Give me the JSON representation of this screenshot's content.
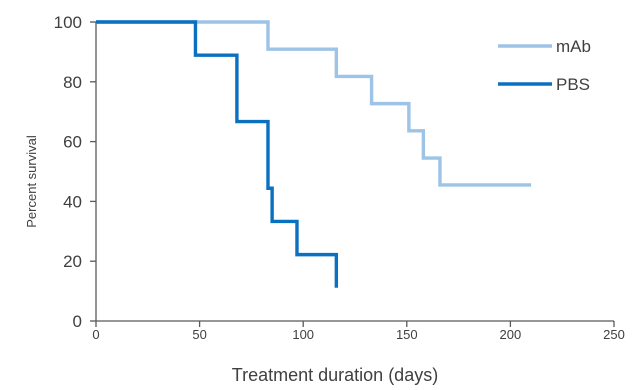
{
  "chart_data": {
    "type": "line",
    "title": "",
    "xlabel": "Treatment duration (days)",
    "ylabel": "Percent survival",
    "xlim": [
      0,
      250
    ],
    "ylim": [
      0,
      100
    ],
    "x_ticks": [
      "0",
      "50",
      "100",
      "150",
      "200",
      "250"
    ],
    "y_ticks": [
      "0",
      "20",
      "40",
      "60",
      "80",
      "100"
    ],
    "grid": false,
    "legend_position": "top-right",
    "series": [
      {
        "name": "mAb",
        "color": "#9dc3e6",
        "step": true,
        "points": [
          [
            0,
            100
          ],
          [
            83,
            100
          ],
          [
            83,
            90.9
          ],
          [
            116,
            90.9
          ],
          [
            116,
            81.8
          ],
          [
            133,
            81.8
          ],
          [
            133,
            72.7
          ],
          [
            151,
            72.7
          ],
          [
            151,
            63.6
          ],
          [
            158,
            63.6
          ],
          [
            158,
            54.5
          ],
          [
            166,
            54.5
          ],
          [
            166,
            45.5
          ],
          [
            210,
            45.5
          ]
        ]
      },
      {
        "name": "PBS",
        "color": "#0a70c0",
        "step": true,
        "points": [
          [
            0,
            100
          ],
          [
            48,
            100
          ],
          [
            48,
            88.9
          ],
          [
            68,
            88.9
          ],
          [
            68,
            66.7
          ],
          [
            83,
            66.7
          ],
          [
            83,
            44.4
          ],
          [
            84,
            44.4
          ],
          [
            84,
            44.4
          ],
          [
            85,
            44.4
          ],
          [
            85,
            33.3
          ],
          [
            97,
            33.3
          ],
          [
            97,
            22.2
          ],
          [
            116,
            22.2
          ],
          [
            116,
            11.1
          ]
        ]
      }
    ]
  }
}
